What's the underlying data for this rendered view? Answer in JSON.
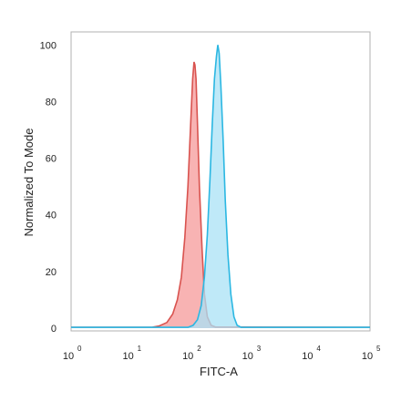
{
  "chart_data": {
    "type": "area",
    "xlabel": "FITC-A",
    "ylabel": "Normalized To Mode",
    "x_scale": "log",
    "xlim": [
      1,
      100000
    ],
    "ylim": [
      0,
      103
    ],
    "x_ticks": [
      {
        "base": "10",
        "exp": "0"
      },
      {
        "base": "10",
        "exp": "1"
      },
      {
        "base": "10",
        "exp": "2"
      },
      {
        "base": "10",
        "exp": "3"
      },
      {
        "base": "10",
        "exp": "4"
      },
      {
        "base": "10",
        "exp": "5"
      }
    ],
    "y_ticks": [
      "0",
      "20",
      "40",
      "60",
      "80",
      "100"
    ],
    "grid": false,
    "series": [
      {
        "fill": "#f59a9a",
        "stroke": "#d9534f",
        "points": [
          [
            1,
            0.3
          ],
          [
            22,
            0.3
          ],
          [
            30,
            0.8
          ],
          [
            40,
            2
          ],
          [
            50,
            5
          ],
          [
            60,
            10
          ],
          [
            70,
            18
          ],
          [
            80,
            32
          ],
          [
            90,
            50
          ],
          [
            100,
            72
          ],
          [
            108,
            88
          ],
          [
            114,
            94
          ],
          [
            118,
            93
          ],
          [
            123,
            88
          ],
          [
            130,
            72
          ],
          [
            140,
            50
          ],
          [
            155,
            28
          ],
          [
            170,
            12
          ],
          [
            190,
            4
          ],
          [
            220,
            1
          ],
          [
            260,
            0.4
          ],
          [
            100000,
            0.3
          ]
        ]
      },
      {
        "fill": "#a9e1f5",
        "stroke": "#2bb7e2",
        "points": [
          [
            1,
            0.3
          ],
          [
            90,
            0.3
          ],
          [
            110,
            1
          ],
          [
            130,
            3
          ],
          [
            150,
            8
          ],
          [
            170,
            18
          ],
          [
            190,
            33
          ],
          [
            210,
            52
          ],
          [
            230,
            72
          ],
          [
            250,
            88
          ],
          [
            270,
            96
          ],
          [
            285,
            100
          ],
          [
            300,
            97
          ],
          [
            320,
            86
          ],
          [
            350,
            66
          ],
          [
            380,
            45
          ],
          [
            420,
            26
          ],
          [
            470,
            12
          ],
          [
            530,
            4
          ],
          [
            600,
            1
          ],
          [
            700,
            0.3
          ],
          [
            100000,
            0.3
          ]
        ]
      }
    ]
  }
}
